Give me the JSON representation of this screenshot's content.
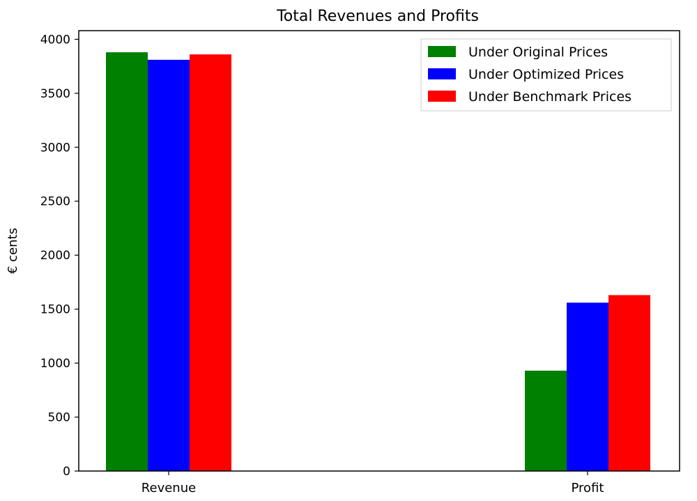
{
  "chart_data": {
    "type": "bar",
    "title": "Total Revenues and Profits",
    "xlabel": "",
    "ylabel": "€ cents",
    "categories": [
      "Revenue",
      "Profit"
    ],
    "series": [
      {
        "name": "Under Original Prices",
        "color": "#008000",
        "values": [
          3880,
          930
        ]
      },
      {
        "name": "Under Optimized Prices",
        "color": "#0000ff",
        "values": [
          3810,
          1560
        ]
      },
      {
        "name": "Under Benchmark Prices",
        "color": "#ff0000",
        "values": [
          3860,
          1630
        ]
      }
    ],
    "ylim": [
      0,
      4080
    ],
    "yticks": [
      0,
      500,
      1000,
      1500,
      2000,
      2500,
      3000,
      3500,
      4000
    ],
    "grid": false,
    "legend_position": "upper-right"
  }
}
